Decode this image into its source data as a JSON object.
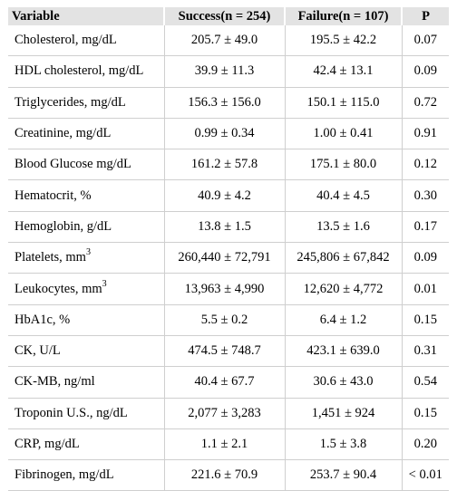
{
  "table": {
    "headers": {
      "variable": "Variable",
      "success": "Success(n = 254)",
      "failure": "Failure(n = 107)",
      "p": "P"
    },
    "rows": [
      {
        "variable": "Cholesterol, mg/dL",
        "sup": "",
        "success": "205.7 ± 49.0",
        "failure": "195.5 ± 42.2",
        "p": "0.07"
      },
      {
        "variable": "HDL cholesterol, mg/dL",
        "sup": "",
        "success": "39.9 ± 11.3",
        "failure": "42.4 ± 13.1",
        "p": "0.09"
      },
      {
        "variable": "Triglycerides, mg/dL",
        "sup": "",
        "success": "156.3 ± 156.0",
        "failure": "150.1 ± 115.0",
        "p": "0.72"
      },
      {
        "variable": "Creatinine, mg/dL",
        "sup": "",
        "success": "0.99 ± 0.34",
        "failure": "1.00 ± 0.41",
        "p": "0.91"
      },
      {
        "variable": "Blood Glucose mg/dL",
        "sup": "",
        "success": "161.2 ± 57.8",
        "failure": "175.1 ± 80.0",
        "p": "0.12"
      },
      {
        "variable": "Hematocrit, %",
        "sup": "",
        "success": "40.9 ± 4.2",
        "failure": "40.4 ± 4.5",
        "p": "0.30"
      },
      {
        "variable": "Hemoglobin, g/dL",
        "sup": "",
        "success": "13.8 ± 1.5",
        "failure": "13.5 ± 1.6",
        "p": "0.17"
      },
      {
        "variable": "Platelets, mm",
        "sup": "3",
        "success": "260,440 ± 72,791",
        "failure": "245,806 ± 67,842",
        "p": "0.09"
      },
      {
        "variable": "Leukocytes, mm",
        "sup": "3",
        "success": "13,963 ± 4,990",
        "failure": "12,620 ± 4,772",
        "p": "0.01"
      },
      {
        "variable": "HbA1c, %",
        "sup": "",
        "success": "5.5 ± 0.2",
        "failure": "6.4 ± 1.2",
        "p": "0.15"
      },
      {
        "variable": "CK, U/L",
        "sup": "",
        "success": "474.5 ± 748.7",
        "failure": "423.1 ± 639.0",
        "p": "0.31"
      },
      {
        "variable": "CK-MB, ng/ml",
        "sup": "",
        "success": "40.4 ± 67.7",
        "failure": "30.6 ± 43.0",
        "p": "0.54"
      },
      {
        "variable": "Troponin U.S., ng/dL",
        "sup": "",
        "success": "2,077 ± 3,283",
        "failure": "1,451 ± 924",
        "p": "0.15"
      },
      {
        "variable": "CRP, mg/dL",
        "sup": "",
        "success": "1.1 ± 2.1",
        "failure": "1.5 ± 3.8",
        "p": "0.20"
      },
      {
        "variable": "Fibrinogen, mg/dL",
        "sup": "",
        "success": "221.6 ± 70.9",
        "failure": "253.7 ± 90.4",
        "p": "< 0.01"
      }
    ]
  }
}
